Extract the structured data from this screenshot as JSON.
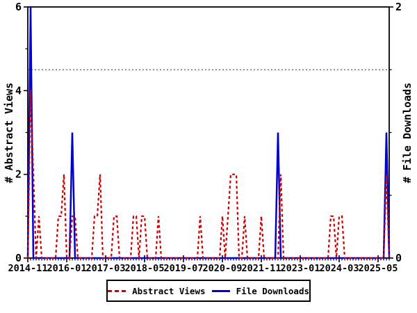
{
  "chart_data": {
    "type": "line",
    "title": "",
    "x_axis": {
      "interval": "monthly",
      "start_month": "2014-11",
      "end_month": "2025-09",
      "n_months": 131,
      "label_every_months": 14,
      "tick_labels": [
        "2014-11",
        "2016-01",
        "2017-03",
        "2018-05",
        "2019-07",
        "2020-09",
        "2021-11",
        "2023-01",
        "2024-03",
        "2025-05"
      ]
    },
    "y_left": {
      "label": "# Abstract Views",
      "min": 0,
      "max": 6,
      "tick_values": [
        0,
        2,
        4,
        6
      ],
      "minor_tick_values": [
        1,
        3,
        5
      ]
    },
    "y_right": {
      "label": "# File Downloads",
      "min": 0,
      "max": 2,
      "tick_values": [
        0,
        2
      ],
      "minor_tick_values": [
        0.5,
        1,
        1.5
      ]
    },
    "reference_line": {
      "axis": "right",
      "value": 1.5,
      "style": "dotted"
    },
    "grid": false,
    "legend": {
      "position": "bottom-center"
    },
    "series": [
      {
        "name": "Abstract Views",
        "axis": "left",
        "color": "#cc0000",
        "style": "dashed",
        "values": [
          0,
          4,
          2,
          0,
          1,
          0,
          0,
          0,
          0,
          0,
          0,
          1,
          1,
          2,
          0,
          0,
          1,
          1,
          0,
          0,
          0,
          0,
          0,
          0,
          1,
          1,
          2,
          0,
          0,
          0,
          0,
          1,
          1,
          0,
          0,
          0,
          0,
          0,
          1,
          1,
          0,
          1,
          1,
          0,
          0,
          0,
          0,
          1,
          0,
          0,
          0,
          0,
          0,
          0,
          0,
          0,
          0,
          0,
          0,
          0,
          0,
          0,
          1,
          0,
          0,
          0,
          0,
          0,
          0,
          0,
          1,
          0,
          1,
          2,
          2,
          2,
          0,
          0,
          1,
          0,
          0,
          0,
          0,
          0,
          1,
          0,
          0,
          0,
          0,
          0,
          0,
          2,
          0,
          0,
          0,
          0,
          0,
          0,
          0,
          0,
          0,
          0,
          0,
          0,
          0,
          0,
          0,
          0,
          0,
          1,
          1,
          0,
          1,
          1,
          0,
          0,
          0,
          0,
          0,
          0,
          0,
          0,
          0,
          0,
          0,
          0,
          0,
          0,
          0,
          2,
          0
        ]
      },
      {
        "name": "File Downloads",
        "axis": "right",
        "color": "#0000cc",
        "style": "solid",
        "values": [
          0,
          2,
          0,
          0,
          0,
          0,
          0,
          0,
          0,
          0,
          0,
          0,
          0,
          0,
          0,
          0,
          1,
          0,
          0,
          0,
          0,
          0,
          0,
          0,
          0,
          0,
          0,
          0,
          0,
          0,
          0,
          0,
          0,
          0,
          0,
          0,
          0,
          0,
          0,
          0,
          0,
          0,
          0,
          0,
          0,
          0,
          0,
          0,
          0,
          0,
          0,
          0,
          0,
          0,
          0,
          0,
          0,
          0,
          0,
          0,
          0,
          0,
          0,
          0,
          0,
          0,
          0,
          0,
          0,
          0,
          0,
          0,
          0,
          0,
          0,
          0,
          0,
          0,
          0,
          0,
          0,
          0,
          0,
          0,
          0,
          0,
          0,
          0,
          0,
          0,
          1,
          0,
          0,
          0,
          0,
          0,
          0,
          0,
          0,
          0,
          0,
          0,
          0,
          0,
          0,
          0,
          0,
          0,
          0,
          0,
          0,
          0,
          0,
          0,
          0,
          0,
          0,
          0,
          0,
          0,
          0,
          0,
          0,
          0,
          0,
          0,
          0,
          0,
          0,
          1,
          0
        ]
      }
    ]
  },
  "colors": {
    "abstract_views": "#cc0000",
    "file_downloads": "#0000cc",
    "axis": "#000000",
    "background": "#ffffff"
  }
}
